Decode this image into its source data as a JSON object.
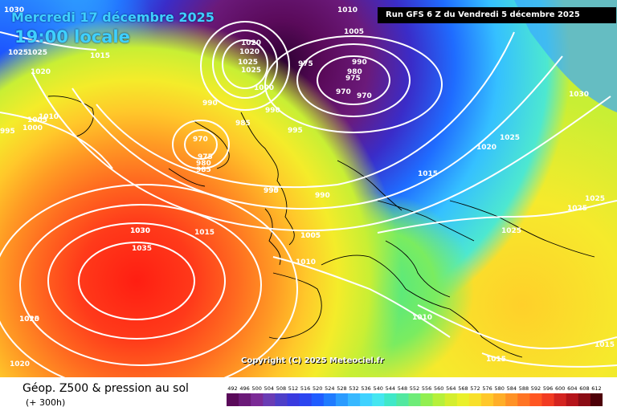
{
  "header": {
    "date_line": "Mercredi 17 décembre 2025",
    "time_line": "19:00 locale",
    "run_info": "Run GFS 6 Z du Vendredi 5 décembre 2025"
  },
  "copyright": "Copyright (C) 2025 Meteociel.fr",
  "legend": {
    "title": "Géop. Z500 & pression au sol",
    "subtitle": "(+ 300h)",
    "scale_values": [
      "492",
      "496",
      "500",
      "504",
      "508",
      "512",
      "516",
      "520",
      "524",
      "528",
      "532",
      "536",
      "540",
      "544",
      "548",
      "552",
      "556",
      "560",
      "564",
      "568",
      "572",
      "576",
      "580",
      "584",
      "588",
      "592",
      "596",
      "600",
      "604",
      "608",
      "612"
    ],
    "scale_colors": [
      "#5a0a5a",
      "#6b1a78",
      "#7b2a96",
      "#6a3cb4",
      "#4e3fc8",
      "#3a3adf",
      "#2b45f0",
      "#1f5cff",
      "#1f7bff",
      "#2a9bff",
      "#37b8ff",
      "#3fd2ff",
      "#45e6f0",
      "#40e8c8",
      "#52e8a0",
      "#6eec78",
      "#92ef50",
      "#b6f03a",
      "#d4ee2e",
      "#eaf02a",
      "#f8e02a",
      "#ffc82a",
      "#ffae28",
      "#ff9226",
      "#ff7424",
      "#ff5622",
      "#f23b22",
      "#d42420",
      "#b5141a",
      "#8a0c14",
      "#4d0008"
    ]
  },
  "map": {
    "isobar_labels": [
      "1010",
      "1005",
      "1030",
      "1025",
      "1025",
      "1015",
      "1020",
      "1010",
      "995",
      "1000",
      "1005",
      "990",
      "985",
      "970",
      "975",
      "980",
      "985",
      "1025",
      "1020",
      "1020",
      "1025",
      "1030",
      "1035",
      "1015",
      "1000",
      "1005",
      "975",
      "990",
      "980",
      "975",
      "970",
      "970",
      "990",
      "995",
      "1025",
      "1015",
      "1025",
      "1030",
      "1020",
      "1025",
      "1025",
      "1005",
      "1010",
      "1010",
      "1015",
      "1015",
      "1010",
      "990",
      "990",
      "1025",
      "1020",
      "995",
      "1030"
    ]
  }
}
